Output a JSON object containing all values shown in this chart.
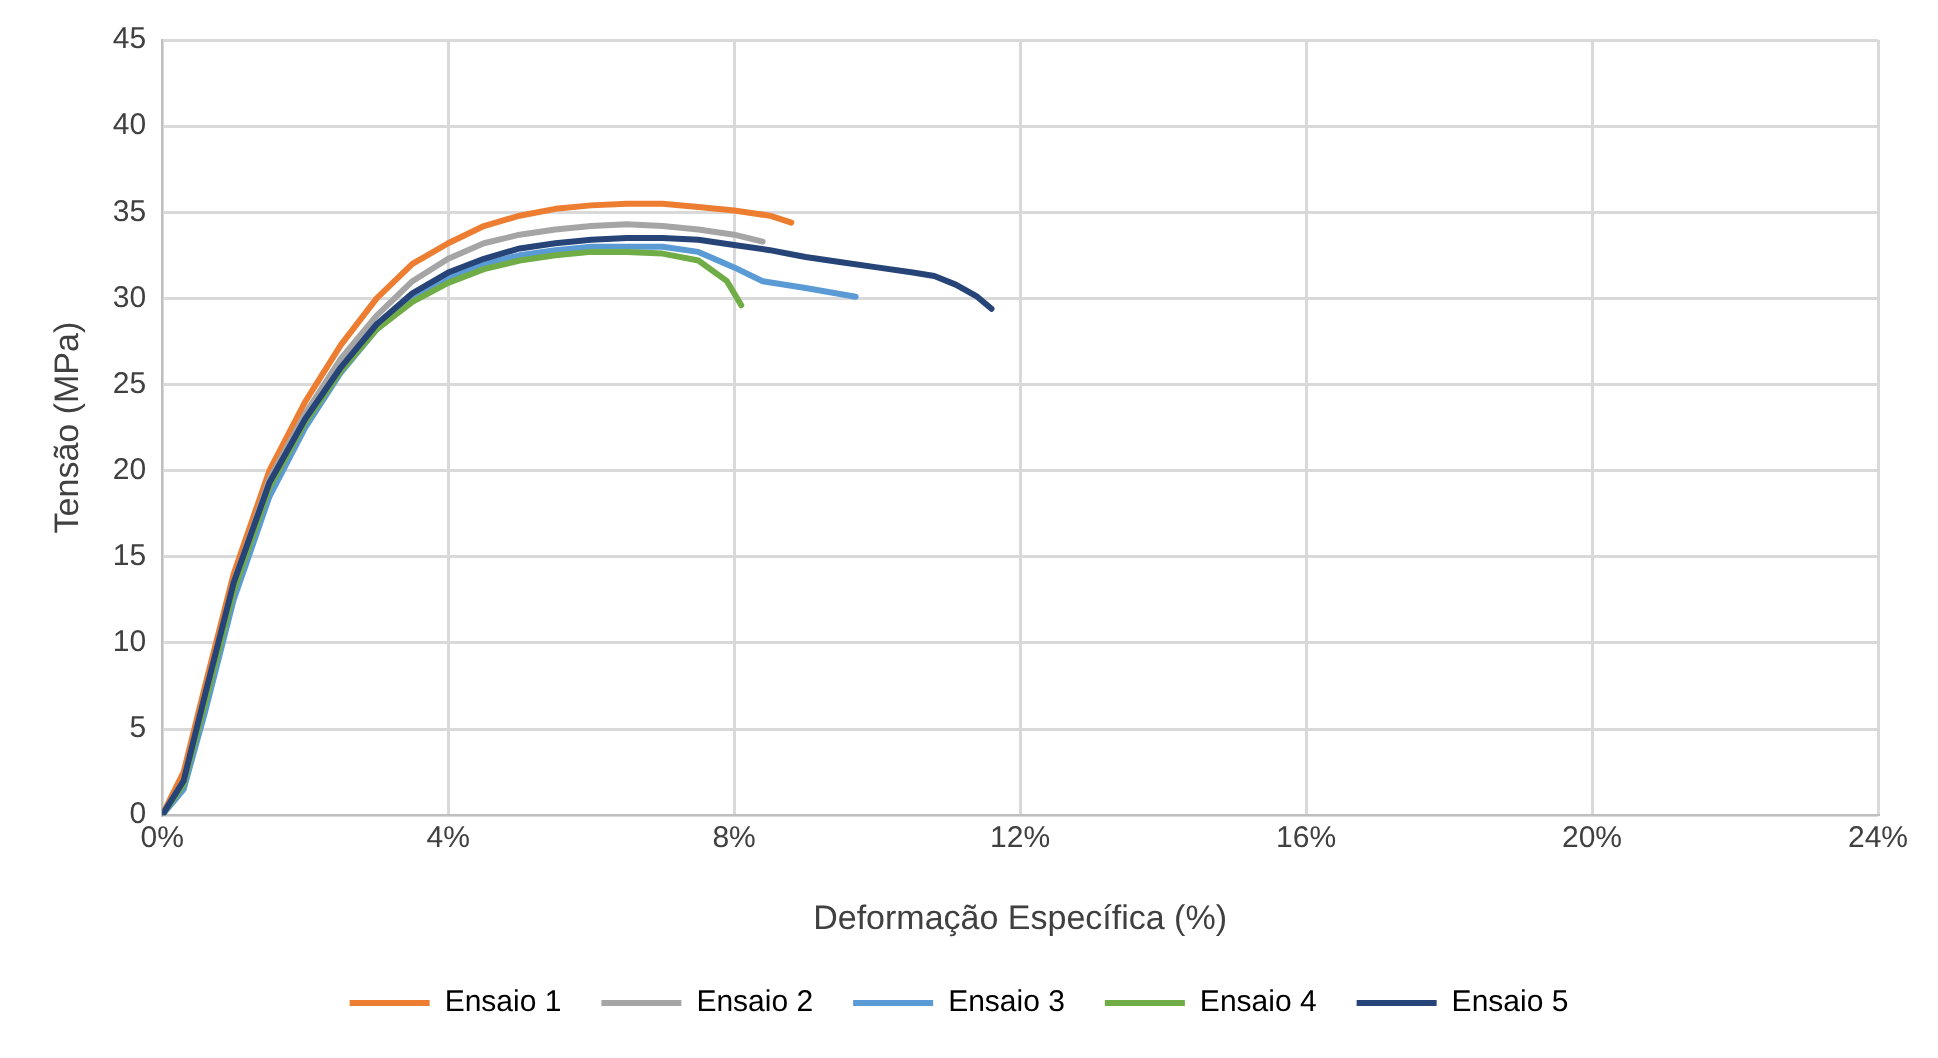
{
  "chart_data": {
    "type": "line",
    "xlabel": "Deformação Específica (%)",
    "ylabel": "Tensão (MPa)",
    "xlim": [
      0,
      24
    ],
    "xticks": [
      {
        "value": 0,
        "label": "0%"
      },
      {
        "value": 4,
        "label": "4%"
      },
      {
        "value": 8,
        "label": "8%"
      },
      {
        "value": 12,
        "label": "12%"
      },
      {
        "value": 16,
        "label": "16%"
      },
      {
        "value": 20,
        "label": "20%"
      },
      {
        "value": 24,
        "label": "24%"
      }
    ],
    "ylim": [
      0,
      45
    ],
    "yticks": [
      0,
      5,
      10,
      15,
      20,
      25,
      30,
      35,
      40,
      45
    ],
    "grid": true,
    "legend": "bottom",
    "marker": "none",
    "line_style": "solid",
    "series": [
      {
        "name": "Ensaio 1",
        "color": "#ed7d31",
        "x": [
          0,
          0.3,
          0.6,
          1.0,
          1.5,
          2,
          2.5,
          3,
          3.5,
          4,
          4.5,
          5,
          5.5,
          6,
          6.5,
          7,
          7.5,
          8,
          8.5,
          8.8
        ],
        "values": [
          0,
          2.5,
          7.5,
          14,
          20,
          24,
          27.3,
          30,
          32,
          33.2,
          34.2,
          34.8,
          35.2,
          35.4,
          35.5,
          35.5,
          35.3,
          35.1,
          34.8,
          34.4
        ]
      },
      {
        "name": "Ensaio 2",
        "color": "#a5a5a5",
        "x": [
          0,
          0.3,
          0.6,
          1.0,
          1.5,
          2,
          2.5,
          3,
          3.5,
          4,
          4.5,
          5,
          5.5,
          6,
          6.5,
          7,
          7.5,
          8,
          8.4
        ],
        "values": [
          0,
          2,
          7,
          13.5,
          19.5,
          23.3,
          26.5,
          29,
          31,
          32.3,
          33.2,
          33.7,
          34,
          34.2,
          34.3,
          34.2,
          34,
          33.7,
          33.3
        ]
      },
      {
        "name": "Ensaio 3",
        "color": "#5b9bd5",
        "x": [
          0,
          0.3,
          0.6,
          1.0,
          1.5,
          2,
          2.5,
          3,
          3.5,
          4,
          4.5,
          5,
          5.5,
          6,
          6.5,
          7,
          7.5,
          8,
          8.4,
          9,
          9.7
        ],
        "values": [
          0,
          1.5,
          6,
          12.5,
          18.5,
          22.5,
          25.7,
          28.2,
          30,
          31.2,
          32,
          32.5,
          32.8,
          33,
          33,
          33,
          32.7,
          31.8,
          31,
          30.6,
          30.1
        ]
      },
      {
        "name": "Ensaio 4",
        "color": "#70ad47",
        "x": [
          0,
          0.3,
          0.6,
          1.0,
          1.5,
          2,
          2.5,
          3,
          3.5,
          4,
          4.5,
          5,
          5.5,
          6,
          6.5,
          7,
          7.5,
          7.9,
          8.1
        ],
        "values": [
          0,
          1.8,
          6.5,
          13,
          19,
          22.8,
          25.8,
          28.2,
          29.8,
          30.9,
          31.7,
          32.2,
          32.5,
          32.7,
          32.7,
          32.6,
          32.2,
          31,
          29.6
        ]
      },
      {
        "name": "Ensaio 5",
        "color": "#264478",
        "x": [
          0,
          0.3,
          0.6,
          1.0,
          1.5,
          2,
          2.5,
          3,
          3.5,
          4,
          4.5,
          5,
          5.5,
          6,
          6.5,
          7,
          7.5,
          8,
          8.5,
          9,
          9.5,
          10,
          10.5,
          10.8,
          11.1,
          11.4,
          11.6
        ],
        "values": [
          0,
          2,
          7,
          13.5,
          19.3,
          23,
          26,
          28.5,
          30.3,
          31.5,
          32.3,
          32.9,
          33.2,
          33.4,
          33.5,
          33.5,
          33.4,
          33.1,
          32.8,
          32.4,
          32.1,
          31.8,
          31.5,
          31.3,
          30.8,
          30.1,
          29.4
        ]
      }
    ]
  }
}
